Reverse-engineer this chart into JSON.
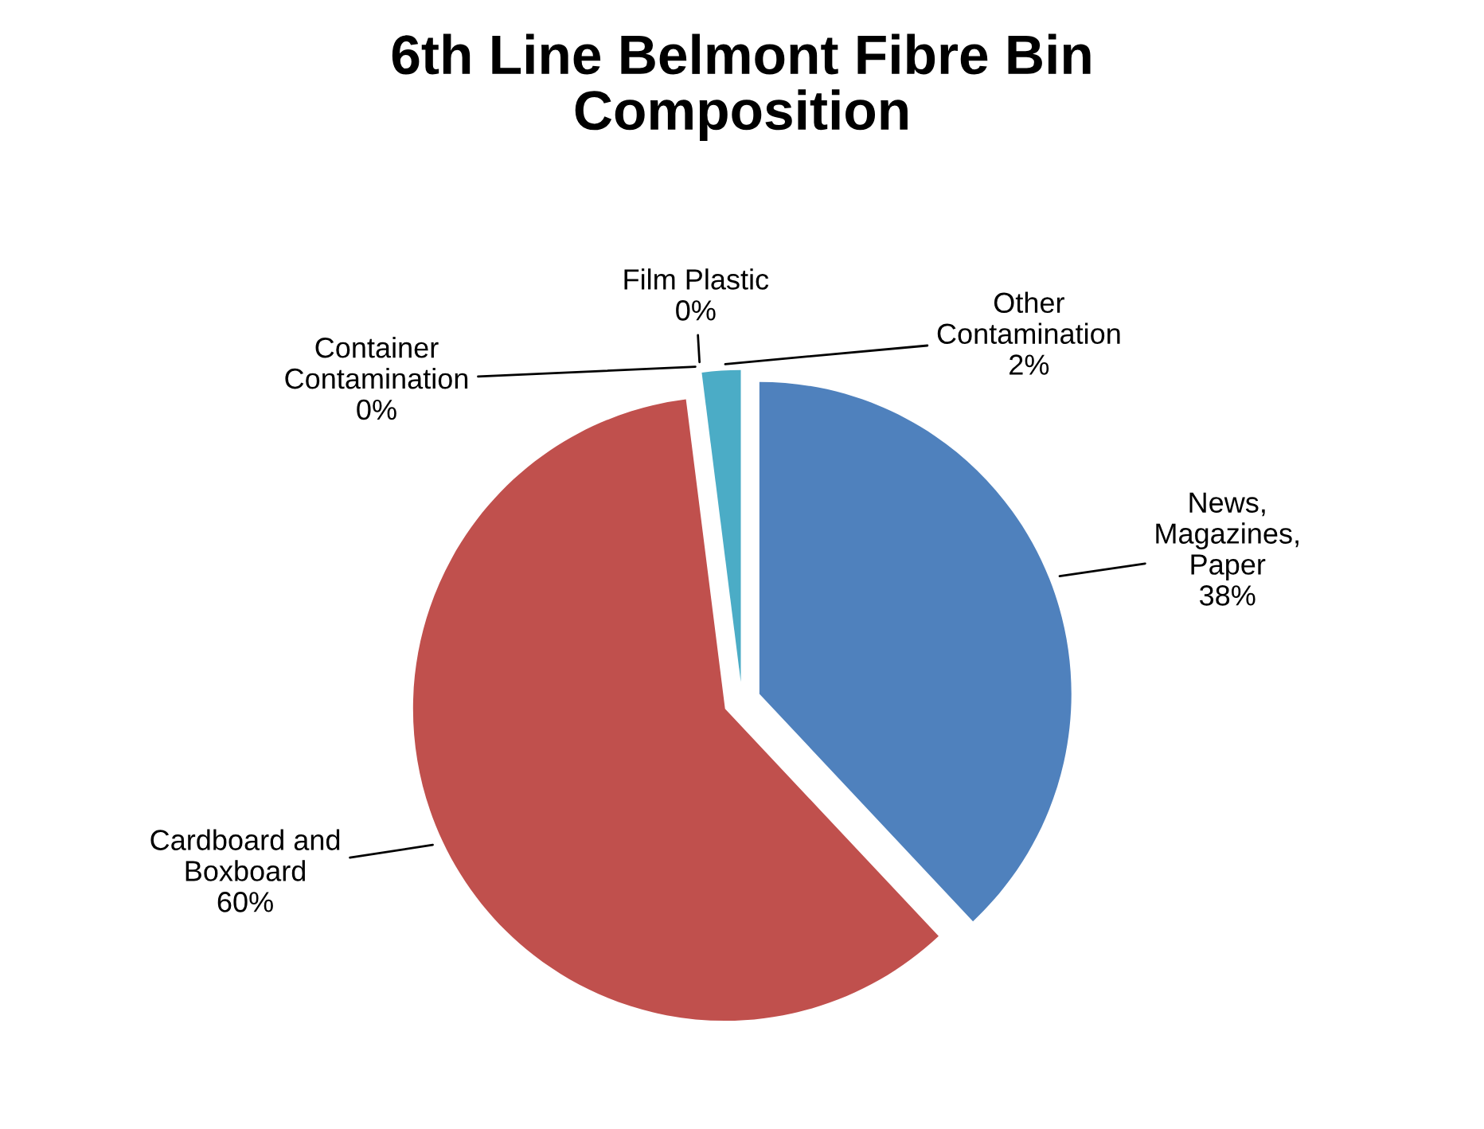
{
  "chart_data": {
    "type": "pie",
    "title": "6th Line Belmont Fibre Bin\nComposition",
    "categories": [
      "Other\nContamination",
      "Film Plastic",
      "Container\nContamination",
      "Cardboard and\nBoxboard",
      "News,\nMagazines,\nPaper"
    ],
    "values": [
      2,
      0,
      0,
      60,
      38
    ],
    "value_labels": [
      "2%",
      "0%",
      "0%",
      "60%",
      "38%"
    ],
    "colors": [
      "#4bacc6",
      "#9bbb59",
      "#8064a2",
      "#c0504d",
      "#4f81bd"
    ],
    "legend": false
  }
}
